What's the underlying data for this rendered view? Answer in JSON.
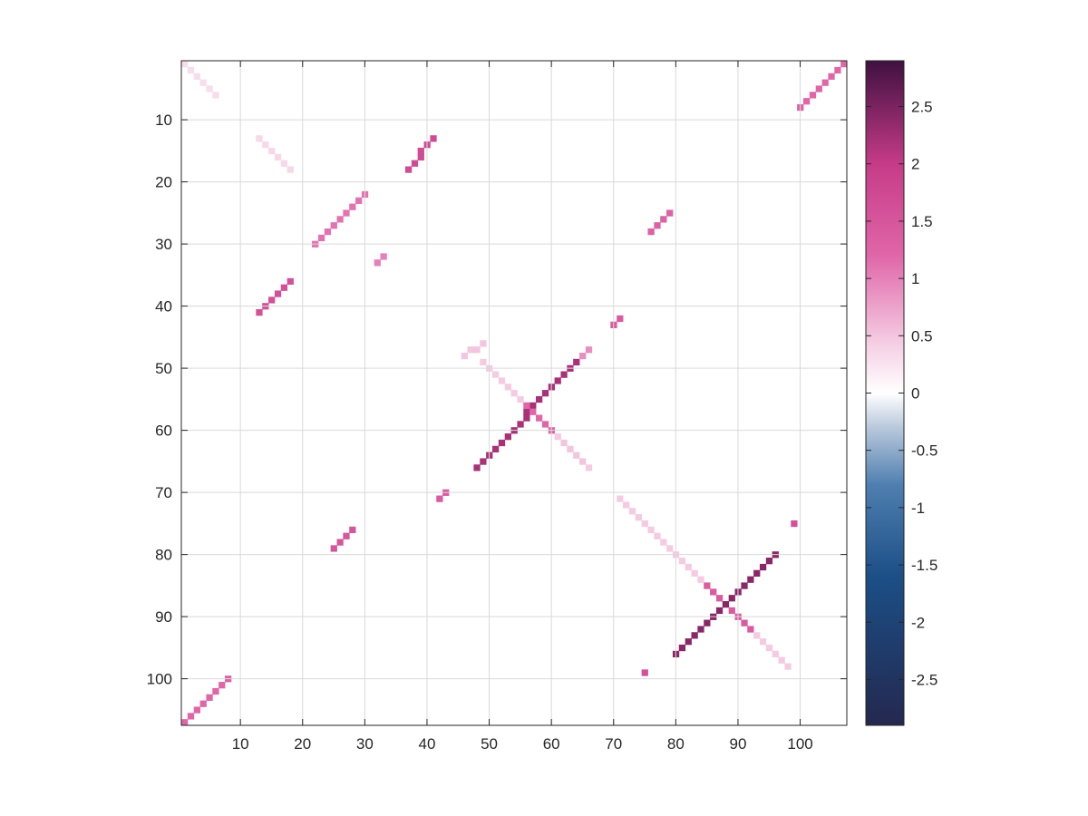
{
  "chart_data": {
    "type": "heatmap",
    "title": "",
    "xlabel": "",
    "ylabel": "",
    "n": 107,
    "xlim": [
      1,
      107
    ],
    "ylim": [
      1,
      107
    ],
    "y_reversed": true,
    "grid": true,
    "x_ticks": [
      10,
      20,
      30,
      40,
      50,
      60,
      70,
      80,
      90,
      100
    ],
    "y_ticks": [
      10,
      20,
      30,
      40,
      50,
      60,
      70,
      80,
      90,
      100
    ],
    "colorbar": {
      "limits": [
        -2.9,
        2.9
      ],
      "ticks": [
        2.5,
        2,
        1.5,
        1,
        0.5,
        0,
        -0.5,
        -1,
        -1.5,
        -2,
        -2.5
      ],
      "tick_labels": [
        "2.5",
        "2",
        "1.5",
        "1",
        "0.5",
        "0",
        "-0.5",
        "-1",
        "-1.5",
        "-2",
        "-2.5"
      ],
      "colormap_stops": [
        {
          "v": -2.9,
          "color": "#24284f"
        },
        {
          "v": -1.6,
          "color": "#1b4f86"
        },
        {
          "v": -0.8,
          "color": "#4f7fb0"
        },
        {
          "v": -0.3,
          "color": "#b9c9dc"
        },
        {
          "v": 0.0,
          "color": "#ffffff"
        },
        {
          "v": 0.4,
          "color": "#f6d2e6"
        },
        {
          "v": 1.2,
          "color": "#e066a8"
        },
        {
          "v": 2.0,
          "color": "#c63b87"
        },
        {
          "v": 2.9,
          "color": "#3f1040"
        }
      ]
    },
    "bands": [
      {
        "from": [
          1,
          107
        ],
        "to": [
          7,
          101
        ],
        "value": 1.2
      },
      {
        "from": [
          13,
          41
        ],
        "to": [
          18,
          36
        ],
        "value": 1.6
      },
      {
        "from": [
          22,
          30
        ],
        "to": [
          30,
          22
        ],
        "value": 1.1
      },
      {
        "from": [
          32,
          33
        ],
        "to": [
          33,
          32
        ],
        "value": 1.0
      },
      {
        "from": [
          42,
          71
        ],
        "to": [
          43,
          70
        ],
        "value": 1.4
      },
      {
        "from": [
          48,
          66
        ],
        "to": [
          64,
          49
        ],
        "value": 2.2
      },
      {
        "from": [
          70,
          43
        ],
        "to": [
          71,
          42
        ],
        "value": 1.4
      },
      {
        "from": [
          76,
          28
        ],
        "to": [
          79,
          25
        ],
        "value": 1.3
      },
      {
        "from": [
          80,
          96
        ],
        "to": [
          96,
          80
        ],
        "value": 2.4
      },
      {
        "from": [
          101,
          7
        ],
        "to": [
          107,
          1
        ],
        "value": 1.2
      },
      {
        "from": [
          8,
          100
        ],
        "to": [
          8,
          100
        ],
        "value": 1.3
      },
      {
        "from": [
          100,
          8
        ],
        "to": [
          100,
          8
        ],
        "value": 1.3
      },
      {
        "from": [
          75,
          99
        ],
        "to": [
          75,
          99
        ],
        "value": 1.6
      },
      {
        "from": [
          99,
          75
        ],
        "to": [
          99,
          75
        ],
        "value": 1.6
      },
      {
        "from": [
          25,
          79
        ],
        "to": [
          28,
          76
        ],
        "value": 1.5
      },
      {
        "from": [
          37,
          18
        ],
        "to": [
          41,
          13
        ],
        "value": 1.7
      },
      {
        "from": [
          46,
          48
        ],
        "to": [
          49,
          46
        ],
        "value": 0.5
      },
      {
        "from": [
          65,
          48
        ],
        "to": [
          66,
          47
        ],
        "value": 0.9
      },
      {
        "from": [
          1,
          1
        ],
        "to": [
          6,
          6
        ],
        "value": 0.3
      },
      {
        "from": [
          49,
          49
        ],
        "to": [
          66,
          66
        ],
        "value": 0.45
      },
      {
        "from": [
          71,
          71
        ],
        "to": [
          98,
          98
        ],
        "value": 0.45
      },
      {
        "from": [
          13,
          13
        ],
        "to": [
          18,
          18
        ],
        "value": 0.35
      },
      {
        "from": [
          62,
          62
        ],
        "to": [
          65,
          65
        ],
        "value": 0.5
      },
      {
        "from": [
          85,
          85
        ],
        "to": [
          92,
          92
        ],
        "value": 1.4
      },
      {
        "from": [
          56,
          56
        ],
        "to": [
          60,
          60
        ],
        "value": 1.2
      }
    ]
  }
}
